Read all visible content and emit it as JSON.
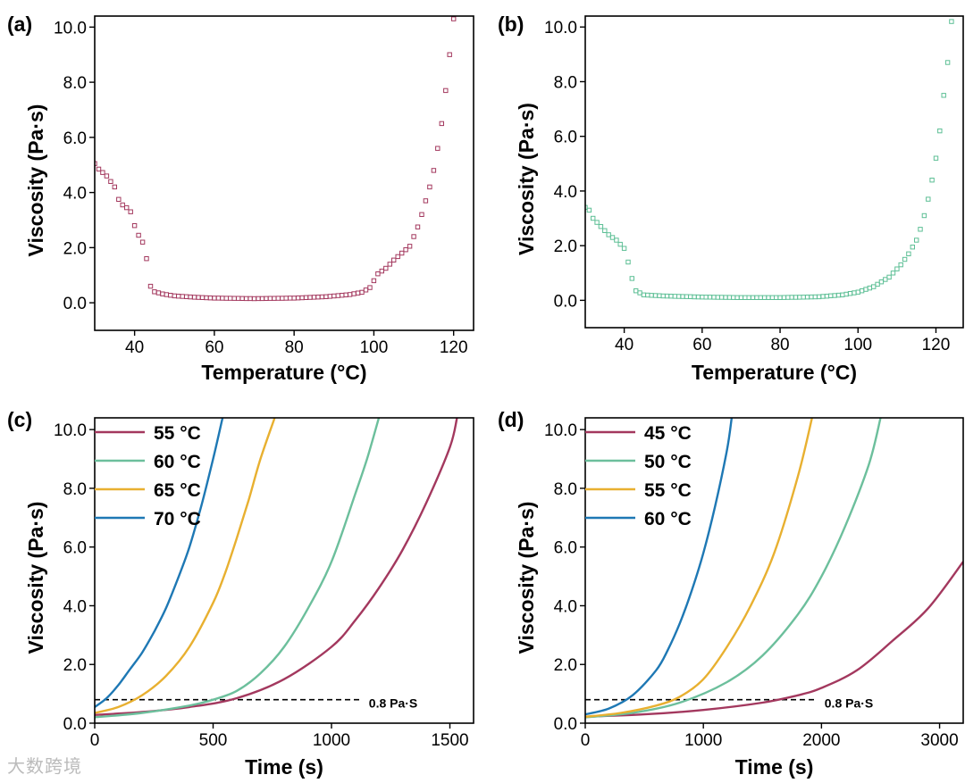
{
  "figure": {
    "watermark": "大数跨境"
  },
  "chart_data": [
    {
      "id": "a",
      "type": "scatter",
      "panel_label": "(a)",
      "title": "",
      "xlabel": "Temperature (°C)",
      "ylabel": "Viscosity (Pa·s)",
      "xlim": [
        30,
        125
      ],
      "ylim": [
        -1.0,
        10.4
      ],
      "xticks": [
        40,
        60,
        80,
        100,
        120
      ],
      "xtick_labels": [
        "40",
        "60",
        "80",
        "100",
        "120"
      ],
      "yticks": [
        0,
        2,
        4,
        6,
        8,
        10
      ],
      "ytick_labels": [
        "0.0",
        "2.0",
        "4.0",
        "6.0",
        "8.0",
        "10.0"
      ],
      "color": "#a3385e",
      "marker": "hollow-square",
      "anchors": [
        [
          30,
          5.05
        ],
        [
          31,
          4.85
        ],
        [
          33,
          4.6
        ],
        [
          35,
          4.2
        ],
        [
          36,
          3.75
        ],
        [
          37,
          3.55
        ],
        [
          38,
          3.45
        ],
        [
          39,
          3.3
        ],
        [
          40,
          2.8
        ],
        [
          41,
          2.45
        ],
        [
          42,
          2.2
        ],
        [
          43,
          1.6
        ],
        [
          44,
          0.6
        ],
        [
          45,
          0.4
        ],
        [
          47,
          0.32
        ],
        [
          50,
          0.25
        ],
        [
          55,
          0.2
        ],
        [
          60,
          0.17
        ],
        [
          70,
          0.15
        ],
        [
          80,
          0.17
        ],
        [
          88,
          0.22
        ],
        [
          94,
          0.3
        ],
        [
          97,
          0.38
        ],
        [
          99,
          0.55
        ],
        [
          100,
          0.8
        ],
        [
          101,
          1.05
        ],
        [
          103,
          1.25
        ],
        [
          105,
          1.55
        ],
        [
          107,
          1.8
        ],
        [
          109,
          2.05
        ],
        [
          110,
          2.4
        ],
        [
          111,
          2.75
        ],
        [
          112,
          3.2
        ],
        [
          113,
          3.7
        ],
        [
          114,
          4.2
        ],
        [
          115,
          4.8
        ],
        [
          116,
          5.6
        ],
        [
          117,
          6.5
        ],
        [
          118,
          7.7
        ],
        [
          119,
          9.0
        ],
        [
          120,
          10.3
        ]
      ]
    },
    {
      "id": "b",
      "type": "scatter",
      "panel_label": "(b)",
      "title": "",
      "xlabel": "Temperature (°C)",
      "ylabel": "Viscosity (Pa·s)",
      "xlim": [
        30,
        127
      ],
      "ylim": [
        -1.0,
        10.4
      ],
      "xticks": [
        40,
        60,
        80,
        100,
        120
      ],
      "xtick_labels": [
        "40",
        "60",
        "80",
        "100",
        "120"
      ],
      "yticks": [
        0,
        2,
        4,
        6,
        8,
        10
      ],
      "ytick_labels": [
        "0.0",
        "2.0",
        "4.0",
        "6.0",
        "8.0",
        "10.0"
      ],
      "color": "#5dbf95",
      "marker": "hollow-square",
      "anchors": [
        [
          30,
          3.4
        ],
        [
          31,
          3.3
        ],
        [
          32,
          3.0
        ],
        [
          34,
          2.7
        ],
        [
          36,
          2.4
        ],
        [
          38,
          2.2
        ],
        [
          40,
          1.9
        ],
        [
          41,
          1.4
        ],
        [
          42,
          0.8
        ],
        [
          43,
          0.35
        ],
        [
          45,
          0.2
        ],
        [
          50,
          0.16
        ],
        [
          60,
          0.12
        ],
        [
          70,
          0.1
        ],
        [
          80,
          0.1
        ],
        [
          90,
          0.13
        ],
        [
          96,
          0.2
        ],
        [
          100,
          0.3
        ],
        [
          104,
          0.5
        ],
        [
          108,
          0.85
        ],
        [
          111,
          1.3
        ],
        [
          113,
          1.7
        ],
        [
          115,
          2.2
        ],
        [
          116,
          2.6
        ],
        [
          117,
          3.1
        ],
        [
          118,
          3.7
        ],
        [
          119,
          4.4
        ],
        [
          120,
          5.2
        ],
        [
          121,
          6.2
        ],
        [
          122,
          7.5
        ],
        [
          123,
          8.7
        ],
        [
          124,
          10.2
        ]
      ]
    },
    {
      "id": "c",
      "type": "line",
      "panel_label": "(c)",
      "title": "",
      "xlabel": "Time (s)",
      "ylabel": "Viscosity (Pa·s)",
      "xlim": [
        0,
        1600
      ],
      "ylim": [
        0,
        10.4
      ],
      "xticks": [
        0,
        500,
        1000,
        1500
      ],
      "xtick_labels": [
        "0",
        "500",
        "1000",
        "1500"
      ],
      "yticks": [
        0,
        2,
        4,
        6,
        8,
        10
      ],
      "ytick_labels": [
        "0.0",
        "2.0",
        "4.0",
        "6.0",
        "8.0",
        "10.0"
      ],
      "legend_position": "top-left",
      "reference_line": {
        "y": 0.8,
        "x_range": [
          0,
          1120
        ],
        "label": "0.8 Pa·S"
      },
      "series": [
        {
          "name": "55 °C",
          "color": "#a3385e",
          "x": [
            0,
            200,
            400,
            600,
            800,
            1000,
            1100,
            1200,
            1300,
            1400,
            1500,
            1530
          ],
          "y": [
            0.28,
            0.38,
            0.55,
            0.85,
            1.5,
            2.6,
            3.5,
            4.6,
            5.9,
            7.5,
            9.4,
            10.4
          ]
        },
        {
          "name": "60 °C",
          "color": "#6cbf9c",
          "x": [
            0,
            200,
            400,
            500,
            600,
            700,
            800,
            900,
            1000,
            1100,
            1150,
            1200
          ],
          "y": [
            0.2,
            0.35,
            0.6,
            0.8,
            1.1,
            1.7,
            2.6,
            3.9,
            5.5,
            7.8,
            9.0,
            10.4
          ]
        },
        {
          "name": "65 °C",
          "color": "#e8b030",
          "x": [
            0,
            100,
            200,
            300,
            400,
            500,
            550,
            600,
            650,
            700,
            760
          ],
          "y": [
            0.35,
            0.55,
            0.95,
            1.6,
            2.6,
            4.1,
            5.1,
            6.3,
            7.6,
            9.0,
            10.4
          ]
        },
        {
          "name": "70 °C",
          "color": "#1e78b4",
          "x": [
            0,
            50,
            100,
            150,
            200,
            250,
            300,
            350,
            400,
            450,
            500,
            540
          ],
          "y": [
            0.55,
            0.85,
            1.3,
            1.85,
            2.4,
            3.1,
            3.9,
            4.9,
            6.0,
            7.4,
            9.0,
            10.4
          ]
        }
      ]
    },
    {
      "id": "d",
      "type": "line",
      "panel_label": "(d)",
      "title": "",
      "xlabel": "Time (s)",
      "ylabel": "Viscosity (Pa·s)",
      "xlim": [
        0,
        3200
      ],
      "ylim": [
        0,
        10.4
      ],
      "xticks": [
        0,
        1000,
        2000,
        3000
      ],
      "xtick_labels": [
        "0",
        "1000",
        "2000",
        "3000"
      ],
      "yticks": [
        0,
        2,
        4,
        6,
        8,
        10
      ],
      "ytick_labels": [
        "0.0",
        "2.0",
        "4.0",
        "6.0",
        "8.0",
        "10.0"
      ],
      "legend_position": "top-left",
      "reference_line": {
        "y": 0.8,
        "x_range": [
          0,
          1950
        ],
        "label": "0.8 Pa·S"
      },
      "series": [
        {
          "name": "45 °C",
          "color": "#a3385e",
          "x": [
            0,
            500,
            1000,
            1500,
            1800,
            2000,
            2300,
            2600,
            2900,
            3200
          ],
          "y": [
            0.22,
            0.3,
            0.45,
            0.7,
            0.95,
            1.2,
            1.8,
            2.8,
            3.9,
            5.5
          ]
        },
        {
          "name": "50 °C",
          "color": "#6cbf9c",
          "x": [
            0,
            400,
            800,
            1200,
            1500,
            1800,
            2000,
            2200,
            2400,
            2500
          ],
          "y": [
            0.2,
            0.35,
            0.7,
            1.4,
            2.3,
            3.7,
            5.0,
            6.7,
            8.8,
            10.4
          ]
        },
        {
          "name": "55 °C",
          "color": "#e8b030",
          "x": [
            0,
            300,
            600,
            800,
            1000,
            1200,
            1400,
            1600,
            1800,
            1920
          ],
          "y": [
            0.22,
            0.35,
            0.6,
            0.9,
            1.5,
            2.6,
            4.0,
            5.8,
            8.4,
            10.4
          ]
        },
        {
          "name": "60 °C",
          "color": "#1e78b4",
          "x": [
            0,
            200,
            400,
            600,
            700,
            800,
            900,
            1000,
            1100,
            1200,
            1240
          ],
          "y": [
            0.3,
            0.5,
            0.95,
            1.8,
            2.5,
            3.4,
            4.5,
            5.8,
            7.4,
            9.3,
            10.4
          ]
        }
      ]
    }
  ]
}
